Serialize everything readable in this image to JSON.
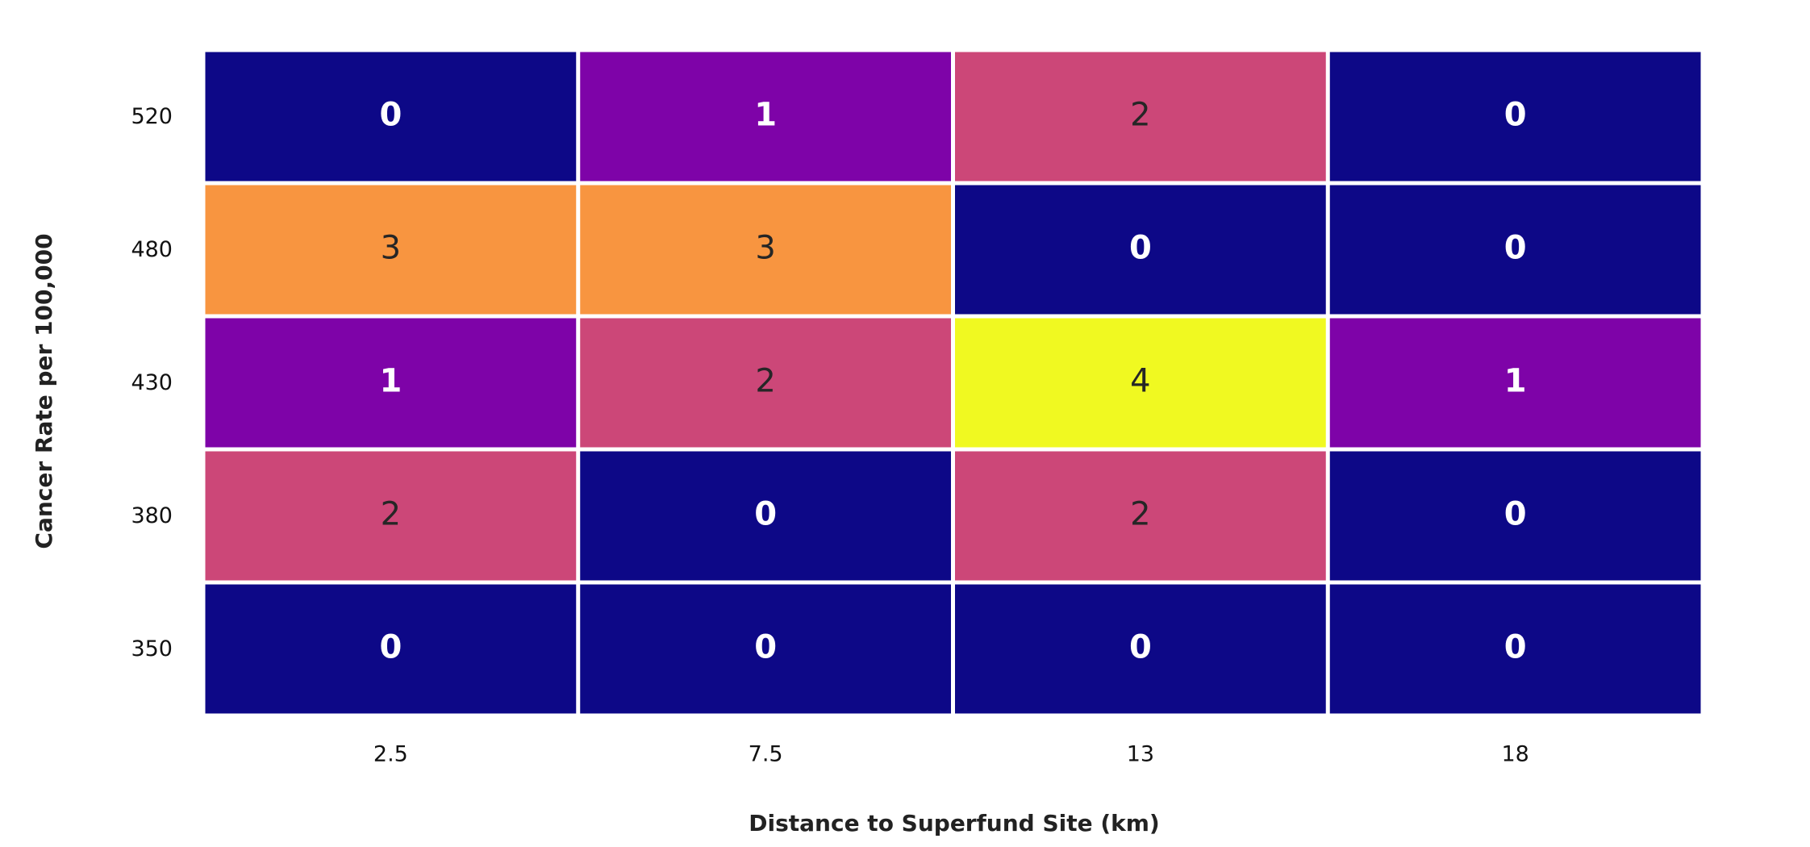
{
  "chart_data": {
    "type": "heatmap",
    "title": "",
    "xlabel": "Distance to Superfund Site (km)",
    "ylabel": "Cancer Rate per 100,000",
    "x_categories": [
      "2.5",
      "7.5",
      "13",
      "18"
    ],
    "y_categories": [
      "520",
      "480",
      "430",
      "380",
      "350"
    ],
    "values": [
      [
        0,
        1,
        2,
        0
      ],
      [
        3,
        3,
        0,
        0
      ],
      [
        1,
        2,
        4,
        1
      ],
      [
        2,
        0,
        2,
        0
      ],
      [
        0,
        0,
        0,
        0
      ]
    ],
    "value_range": [
      0,
      4
    ],
    "colormap": {
      "0": "#0d0887",
      "1": "#7e03a8",
      "2": "#cc4778",
      "3": "#f89540",
      "4": "#f0f921"
    },
    "label_colors": {
      "dark_background": "#ffffff",
      "light_background": "#262626"
    },
    "grid": true,
    "cell_separator_color": "#ffffff"
  }
}
